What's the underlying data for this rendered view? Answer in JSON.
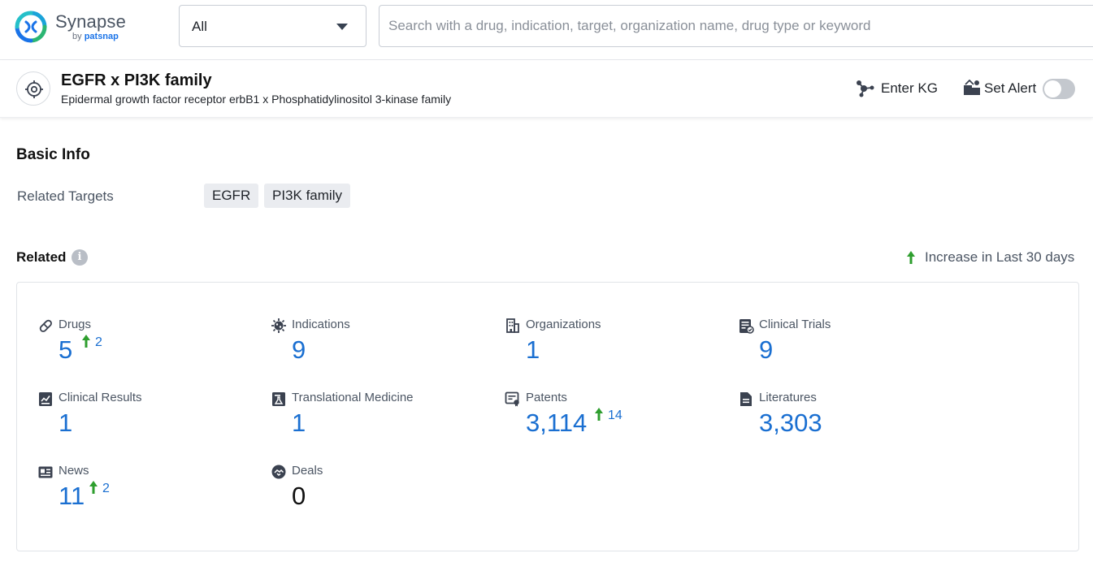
{
  "brand": {
    "name": "Synapse",
    "by": "by",
    "by_brand": "patsnap",
    "accent": "#1a73e8"
  },
  "search": {
    "category_selected": "All",
    "placeholder": "Search with a drug, indication, target, organization name, drug type or keyword",
    "value": ""
  },
  "entity": {
    "icon": "target-icon",
    "title": "EGFR x PI3K family",
    "subtitle": "Epidermal growth factor receptor erbB1 x Phosphatidylinositol 3-kinase family",
    "enter_kg_label": "Enter KG",
    "set_alert_label": "Set Alert",
    "alert_enabled": false
  },
  "basic_info": {
    "title": "Basic Info",
    "related_targets_label": "Related Targets",
    "related_targets": [
      "EGFR",
      "PI3K family"
    ]
  },
  "related": {
    "title": "Related",
    "legend_label": "Increase in Last 30 days",
    "increase_color": "#2e9e2e",
    "value_color": "#1a6fd1",
    "stats": [
      {
        "label": "Drugs",
        "value": "5",
        "increase": "2",
        "icon": "pill-icon"
      },
      {
        "label": "Indications",
        "value": "9",
        "increase": "",
        "icon": "virus-icon"
      },
      {
        "label": "Organizations",
        "value": "1",
        "increase": "",
        "icon": "building-icon"
      },
      {
        "label": "Clinical Trials",
        "value": "9",
        "increase": "",
        "icon": "clipboard-icon"
      },
      {
        "label": "Clinical Results",
        "value": "1",
        "increase": "",
        "icon": "chart-doc-icon"
      },
      {
        "label": "Translational Medicine",
        "value": "1",
        "increase": "",
        "icon": "flask-doc-icon"
      },
      {
        "label": "Patents",
        "value": "3,114",
        "increase": "14",
        "icon": "patent-icon"
      },
      {
        "label": "Literatures",
        "value": "3,303",
        "increase": "",
        "icon": "document-icon"
      },
      {
        "label": "News",
        "value": "11",
        "increase": "2",
        "icon": "newspaper-icon"
      },
      {
        "label": "Deals",
        "value": "0",
        "increase": "",
        "icon": "handshake-icon"
      }
    ]
  }
}
